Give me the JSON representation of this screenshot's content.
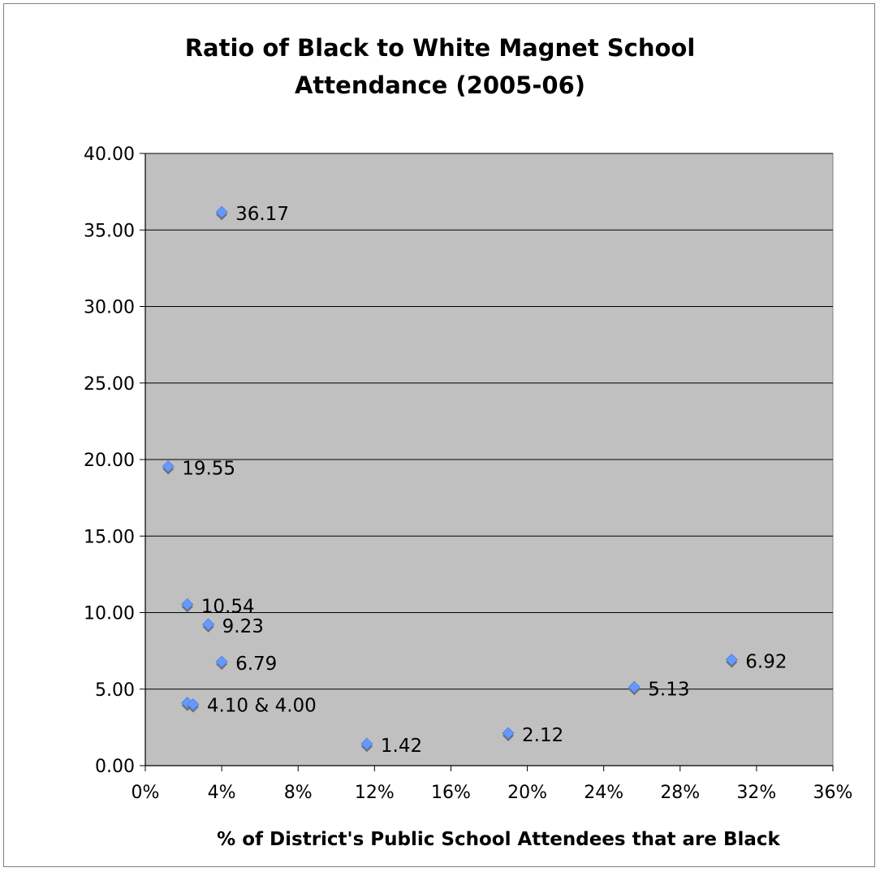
{
  "chart_data": {
    "type": "scatter",
    "title_lines": [
      "Ratio of Black to White Magnet School",
      "Attendance (2005-06)"
    ],
    "xlabel": "% of District's Public School Attendees that are Black",
    "ylabel": "",
    "xlim": [
      0,
      36
    ],
    "ylim": [
      0,
      40
    ],
    "x_ticks": [
      0,
      4,
      8,
      12,
      16,
      20,
      24,
      28,
      32,
      36
    ],
    "x_tick_labels": [
      "0%",
      "4%",
      "8%",
      "12%",
      "16%",
      "20%",
      "24%",
      "28%",
      "32%",
      "36%"
    ],
    "y_ticks": [
      0,
      5,
      10,
      15,
      20,
      25,
      30,
      35,
      40
    ],
    "y_tick_labels": [
      "0.00",
      "5.00",
      "10.00",
      "15.00",
      "20.00",
      "25.00",
      "30.00",
      "35.00",
      "40.00"
    ],
    "grid": "horizontal",
    "legend": "none",
    "points": [
      {
        "x": 4.0,
        "y": 36.17
      },
      {
        "x": 1.2,
        "y": 19.55
      },
      {
        "x": 2.2,
        "y": 10.54
      },
      {
        "x": 3.3,
        "y": 9.23
      },
      {
        "x": 4.0,
        "y": 6.79
      },
      {
        "x": 2.2,
        "y": 4.1
      },
      {
        "x": 2.5,
        "y": 4.0
      },
      {
        "x": 11.6,
        "y": 1.42
      },
      {
        "x": 19.0,
        "y": 2.12
      },
      {
        "x": 25.6,
        "y": 5.13
      },
      {
        "x": 30.7,
        "y": 6.92
      }
    ],
    "data_labels": [
      {
        "text": "36.17",
        "x": 4.0,
        "y": 36.17
      },
      {
        "text": "19.55",
        "x": 1.2,
        "y": 19.55
      },
      {
        "text": "10.54",
        "x": 2.2,
        "y": 10.54
      },
      {
        "text": "9.23",
        "x": 3.3,
        "y": 9.23
      },
      {
        "text": "6.79",
        "x": 4.0,
        "y": 6.79
      },
      {
        "text": "4.10 & 4.00",
        "x": 2.5,
        "y": 4.05
      },
      {
        "text": "1.42",
        "x": 11.6,
        "y": 1.42
      },
      {
        "text": "2.12",
        "x": 19.0,
        "y": 2.12
      },
      {
        "text": "5.13",
        "x": 25.6,
        "y": 5.13
      },
      {
        "text": "6.92",
        "x": 30.7,
        "y": 6.92
      }
    ],
    "colors": {
      "plot_background": "#c0c0c0",
      "marker": "#6699ff",
      "marker_shadow": "#707070",
      "gridline": "#000000"
    }
  }
}
